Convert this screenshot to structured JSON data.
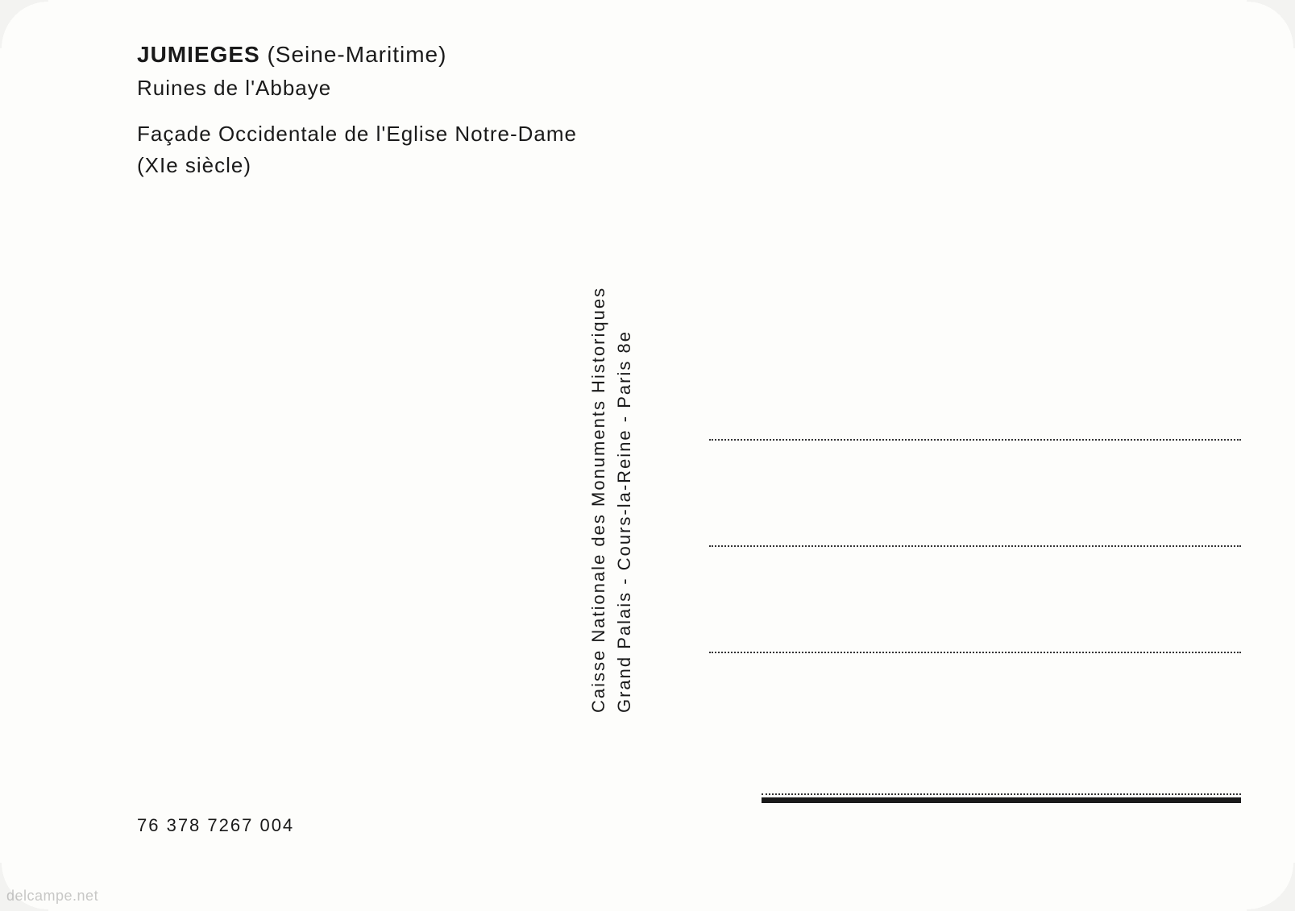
{
  "header": {
    "title_bold": "JUMIEGES",
    "title_region": "(Seine-Maritime)",
    "subtitle": "Ruines de l'Abbaye",
    "description_line1": "Façade Occidentale de l'Eglise Notre-Dame",
    "description_line2": "(XIe siècle)"
  },
  "publisher": {
    "line1": "Caisse Nationale des Monuments Historiques",
    "line2": "Grand   Palais   -   Cours-la-Reine   -   Paris  8e"
  },
  "reference": {
    "code": "76 378 7267 004"
  },
  "watermark": {
    "text": "delcampe.net"
  },
  "styling": {
    "background_color": "#fdfdfb",
    "text_color": "#1a1a1a",
    "dotted_color": "#333333",
    "header_fontsize": 28,
    "description_fontsize": 26,
    "vertical_fontsize": 22,
    "reference_fontsize": 22,
    "watermark_color": "rgba(100,100,100,0.35)",
    "address_line_count": 3,
    "address_line_spacing": 130
  }
}
